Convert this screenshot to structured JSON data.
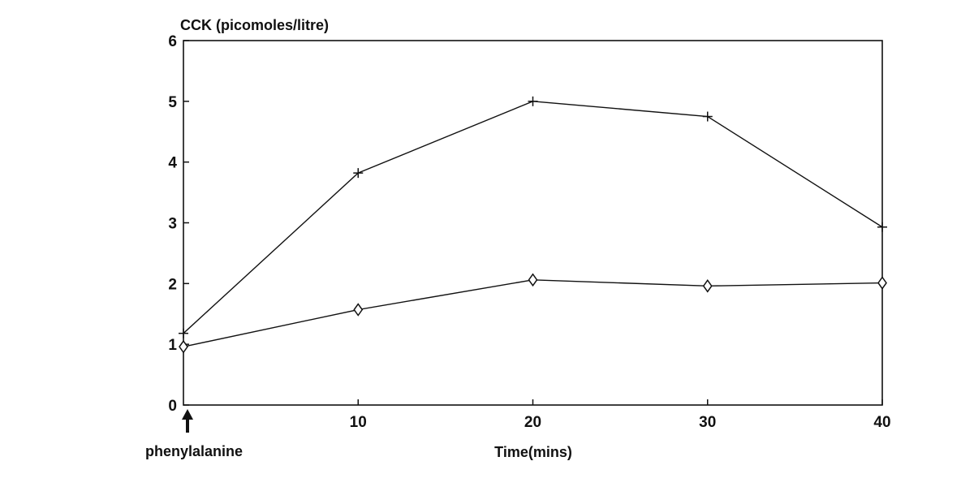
{
  "chart_data": {
    "type": "line",
    "ylabel": "CCK (picomoles/litre)",
    "xlabel": "Time(mins)",
    "annotation": "phenylalanine",
    "xlim": [
      0,
      40
    ],
    "ylim": [
      0,
      6
    ],
    "xticks": [
      "10",
      "20",
      "30",
      "40"
    ],
    "yticks": [
      "0",
      "1",
      "2",
      "3",
      "4",
      "5",
      "6"
    ],
    "grid": false,
    "x": [
      0,
      10,
      20,
      30,
      40
    ],
    "series": [
      {
        "marker": "plus",
        "values": [
          1.18,
          3.82,
          5.0,
          4.75,
          2.93
        ]
      },
      {
        "marker": "diamond",
        "values": [
          0.96,
          1.57,
          2.06,
          1.96,
          2.01
        ]
      }
    ]
  }
}
